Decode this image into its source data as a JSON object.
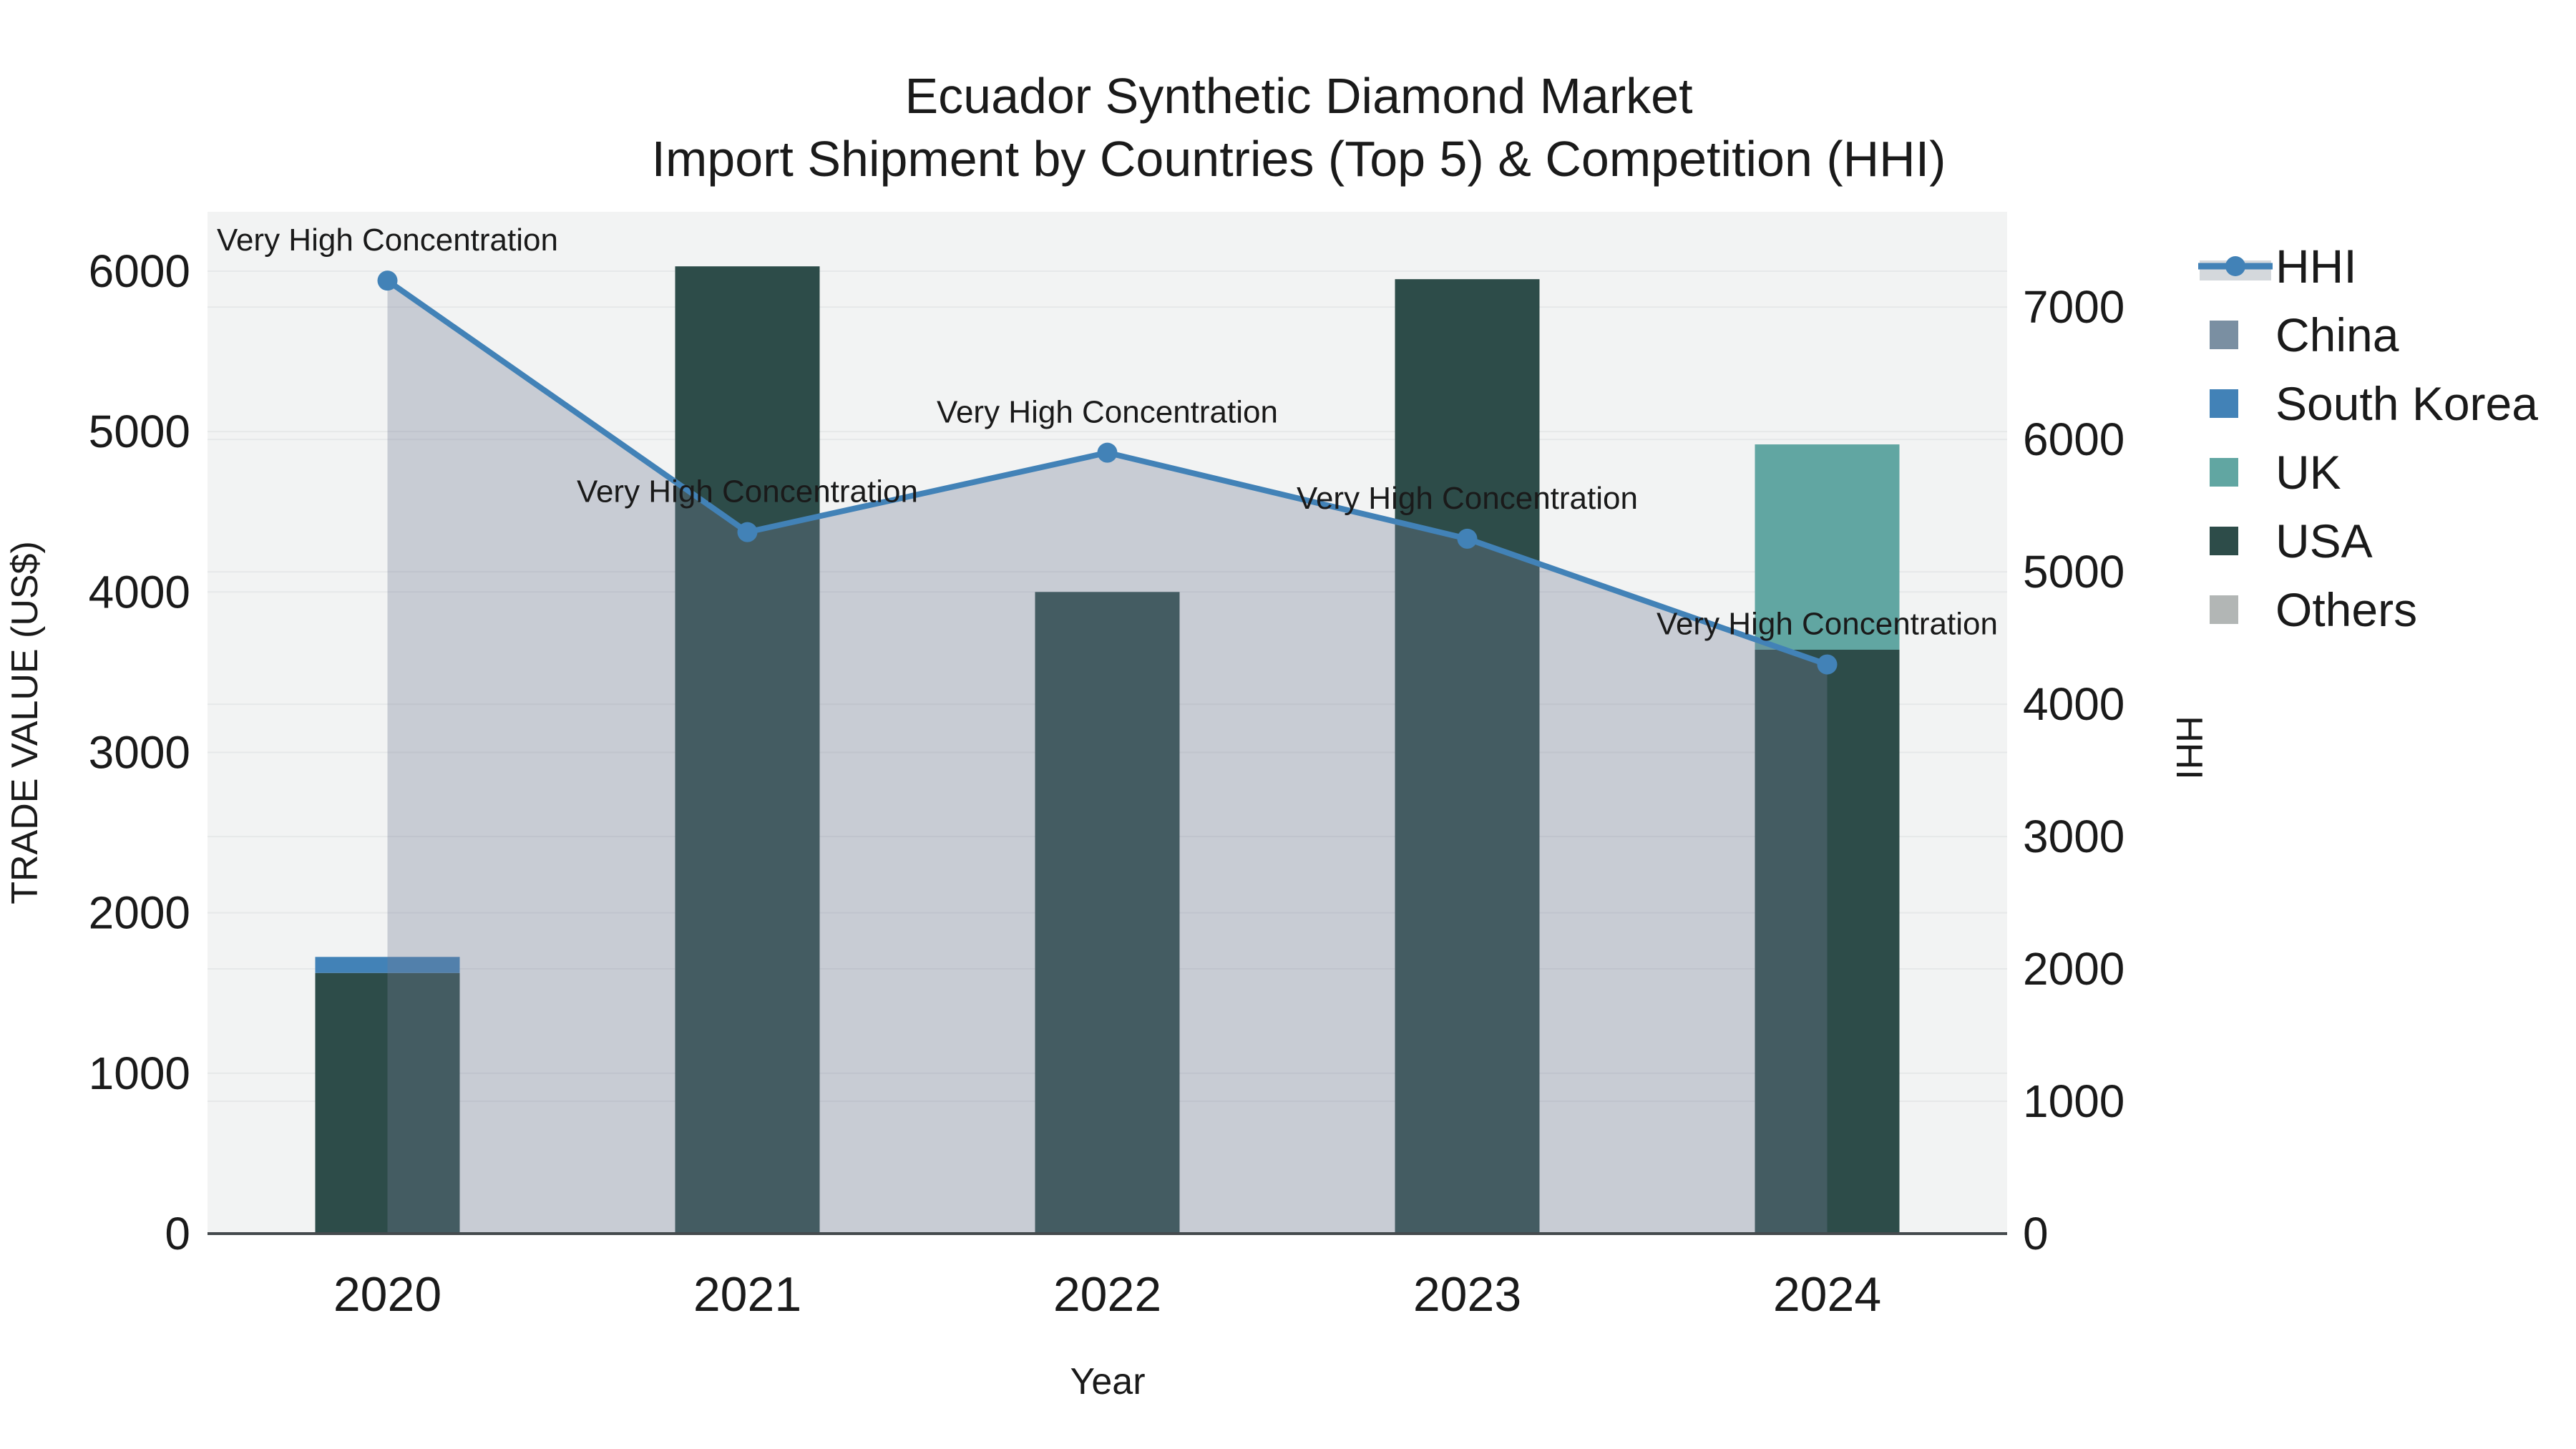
{
  "figure": {
    "title_line1": "Ecuador Synthetic Diamond Market",
    "title_line2": "Import Shipment by Countries (Top 5) & Competition (HHI)"
  },
  "chart_data": {
    "type": "bar",
    "subtype": "stacked-bars-with-line-overlay",
    "title": "Ecuador Synthetic Diamond Market Import Shipment by Countries (Top 5) & Competition (HHI)",
    "categories": [
      "2020",
      "2021",
      "2022",
      "2023",
      "2024"
    ],
    "x_axis_label": "Year",
    "y_left": {
      "label": "TRADE VALUE (US$)",
      "ticks": [
        0,
        1000,
        2000,
        3000,
        4000,
        5000,
        6000
      ],
      "range": [
        0,
        6370
      ],
      "grid": true
    },
    "y_right": {
      "label": "HHI",
      "ticks": [
        0,
        1000,
        2000,
        3000,
        4000,
        5000,
        6000,
        7000
      ],
      "range": [
        0,
        7720
      ],
      "grid": true
    },
    "bar_series": [
      {
        "name": "China",
        "color": "#7a8fa2",
        "values": [
          0,
          0,
          0,
          0,
          0
        ]
      },
      {
        "name": "South Korea",
        "color": "#4282b7",
        "values": [
          100,
          0,
          0,
          0,
          0
        ]
      },
      {
        "name": "UK",
        "color": "#61a6a2",
        "values": [
          0,
          0,
          0,
          0,
          1280
        ]
      },
      {
        "name": "USA",
        "color": "#2d4c49",
        "values": [
          1625,
          6030,
          4000,
          5950,
          3640
        ]
      },
      {
        "name": "Others",
        "color": "#b2b6b5",
        "values": [
          0,
          0,
          0,
          0,
          0
        ]
      }
    ],
    "stack_order": [
      "USA",
      "South Korea",
      "UK",
      "China",
      "Others"
    ],
    "line_series": {
      "name": "HHI",
      "axis": "right",
      "color": "#4282b7",
      "fill_color": "rgba(115,125,148,0.33)",
      "values": [
        7200,
        5300,
        5900,
        5250,
        4300
      ]
    },
    "annotations": [
      {
        "x": "2020",
        "text": "Very High Concentration"
      },
      {
        "x": "2021",
        "text": "Very High Concentration"
      },
      {
        "x": "2022",
        "text": "Very High Concentration"
      },
      {
        "x": "2023",
        "text": "Very High Concentration"
      },
      {
        "x": "2024",
        "text": "Very High Concentration"
      }
    ],
    "legend": {
      "position": "right",
      "items": [
        "HHI",
        "China",
        "South Korea",
        "UK",
        "USA",
        "Others"
      ]
    },
    "plot_bg_color": "#f2f3f3",
    "gridline_color": "#e6e8e9",
    "axis_line_color": "#444a4d"
  }
}
